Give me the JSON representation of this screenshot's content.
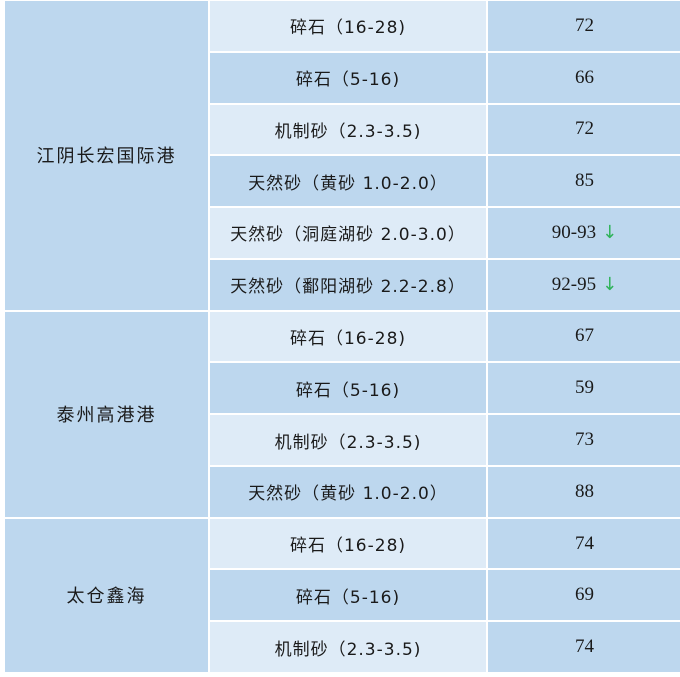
{
  "trend_down_color": "#2fb35a",
  "groups": [
    {
      "port": "江阴长宏国际港",
      "rows": [
        {
          "spec": "碎石（16-28)",
          "price": "72",
          "trend": ""
        },
        {
          "spec": "碎石（5-16)",
          "price": "66",
          "trend": ""
        },
        {
          "spec": "机制砂（2.3-3.5)",
          "price": "72",
          "trend": ""
        },
        {
          "spec": "天然砂（黄砂 1.0-2.0）",
          "price": "85",
          "trend": ""
        },
        {
          "spec": "天然砂（洞庭湖砂 2.0-3.0）",
          "price": "90-93",
          "trend": "↓"
        },
        {
          "spec": "天然砂（鄱阳湖砂 2.2-2.8）",
          "price": "92-95",
          "trend": "↓"
        }
      ]
    },
    {
      "port": "泰州高港港",
      "rows": [
        {
          "spec": "碎石（16-28)",
          "price": "67",
          "trend": ""
        },
        {
          "spec": "碎石（5-16)",
          "price": "59",
          "trend": ""
        },
        {
          "spec": "机制砂（2.3-3.5)",
          "price": "73",
          "trend": ""
        },
        {
          "spec": "天然砂（黄砂 1.0-2.0）",
          "price": "88",
          "trend": ""
        }
      ]
    },
    {
      "port": "太仓鑫海",
      "rows": [
        {
          "spec": "碎石（16-28)",
          "price": "74",
          "trend": ""
        },
        {
          "spec": "碎石（5-16)",
          "price": "69",
          "trend": ""
        },
        {
          "spec": "机制砂（2.3-3.5)",
          "price": "74",
          "trend": ""
        }
      ]
    }
  ]
}
